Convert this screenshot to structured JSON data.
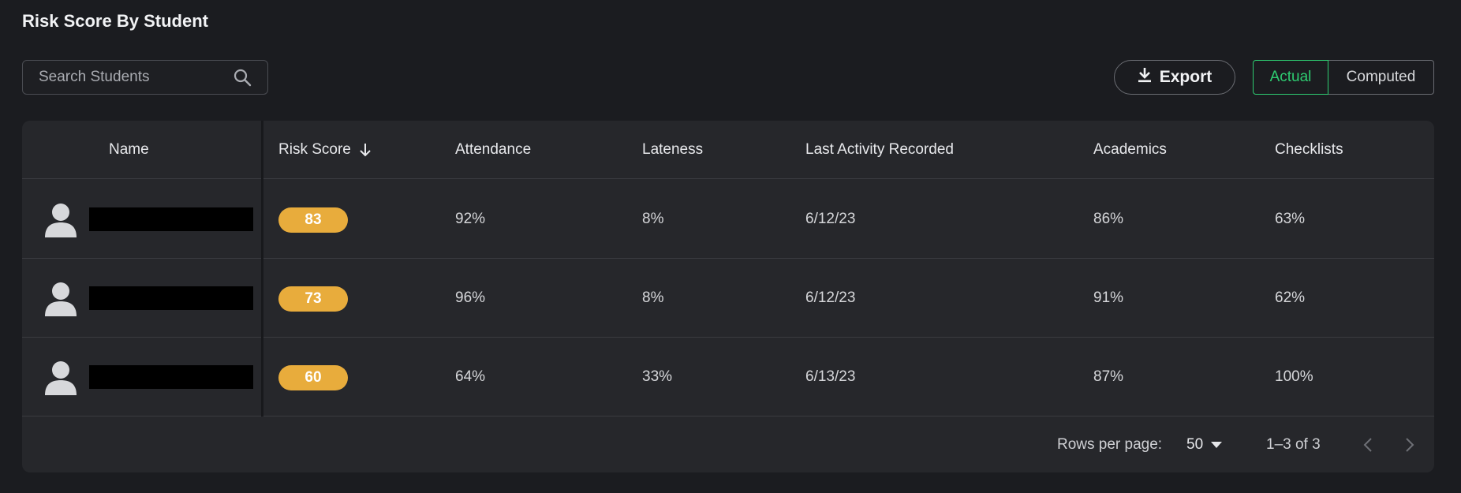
{
  "page": {
    "title": "Risk Score By Student"
  },
  "search": {
    "placeholder": "Search Students",
    "value": ""
  },
  "toolbar": {
    "export_label": "Export"
  },
  "toggle": {
    "actual_label": "Actual",
    "computed_label": "Computed",
    "selected": "Actual"
  },
  "table": {
    "columns": [
      "Name",
      "Risk Score",
      "Attendance",
      "Lateness",
      "Last Activity Recorded",
      "Academics",
      "Checklists"
    ],
    "sort": {
      "column": "Risk Score",
      "direction": "desc"
    },
    "rows": [
      {
        "risk_score": "83",
        "attendance": "92%",
        "lateness": "8%",
        "last_activity": "6/12/23",
        "academics": "86%",
        "checklists": "63%"
      },
      {
        "risk_score": "73",
        "attendance": "96%",
        "lateness": "8%",
        "last_activity": "6/12/23",
        "academics": "91%",
        "checklists": "62%"
      },
      {
        "risk_score": "60",
        "attendance": "64%",
        "lateness": "33%",
        "last_activity": "6/13/23",
        "academics": "87%",
        "checklists": "100%"
      }
    ]
  },
  "pagination": {
    "rows_per_page_label": "Rows per page:",
    "rows_per_page_value": "50",
    "range": "1–3 of 3"
  },
  "colors": {
    "background": "#1b1c20",
    "card": "#26272b",
    "accent_green": "#2ecc71",
    "risk_badge": "#e8ac3c"
  },
  "icons": [
    "search-icon",
    "download-icon",
    "sort-arrow-down-icon",
    "user-avatar-icon",
    "caret-down-icon",
    "chevron-left-icon",
    "chevron-right-icon"
  ]
}
